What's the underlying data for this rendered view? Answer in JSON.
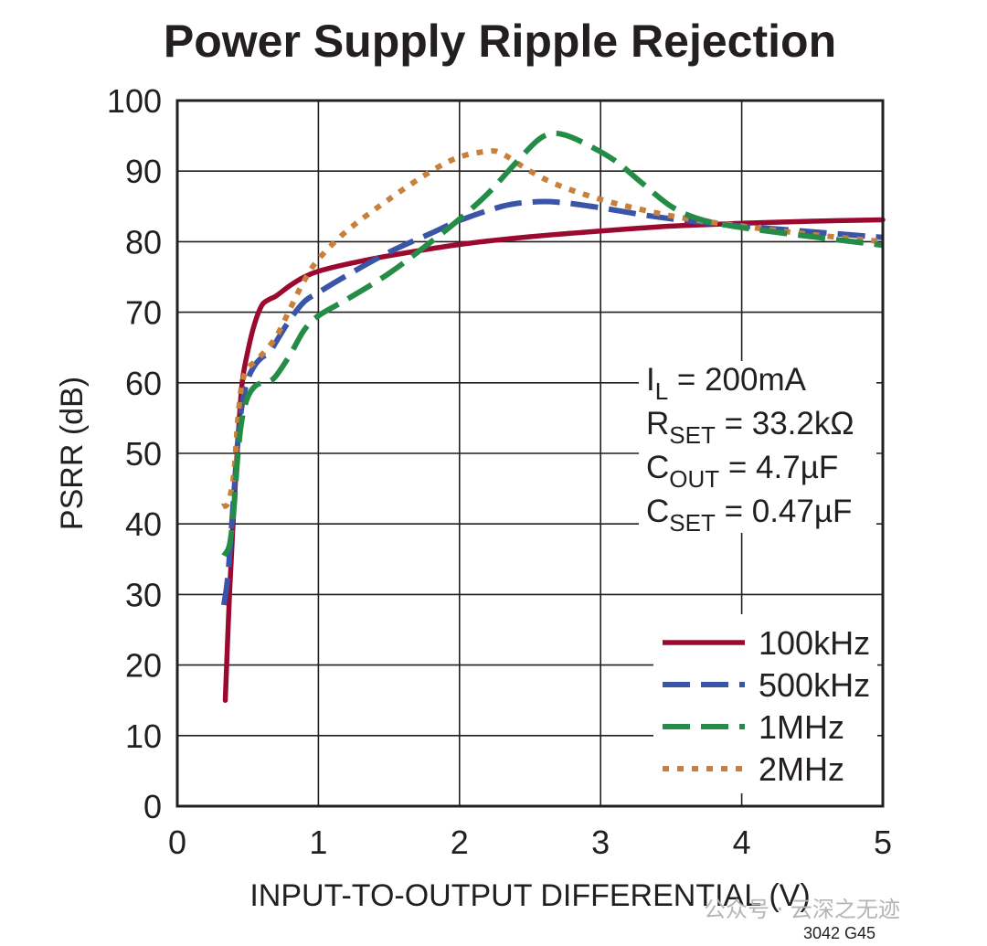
{
  "chart_data": {
    "type": "line",
    "title": "Power Supply Ripple Rejection",
    "xlabel": "INPUT-TO-OUTPUT DIFFERENTIAL (V)",
    "ylabel": "PSRR (dB)",
    "xlim": [
      0,
      5
    ],
    "ylim": [
      0,
      100
    ],
    "xticks": [
      "0",
      "1",
      "2",
      "3",
      "4",
      "5"
    ],
    "yticks": [
      "0",
      "10",
      "20",
      "30",
      "40",
      "50",
      "60",
      "70",
      "80",
      "90",
      "100"
    ],
    "grid": true,
    "conditions": [
      {
        "main": "I",
        "sub": "L",
        "rest": " = 200mA"
      },
      {
        "main": "R",
        "sub": "SET",
        "rest": " = 33.2kΩ"
      },
      {
        "main": "C",
        "sub": "OUT",
        "rest": " = 4.7µF"
      },
      {
        "main": "C",
        "sub": "SET",
        "rest": " = 0.47µF"
      }
    ],
    "legend_position": "bottom-right",
    "series": [
      {
        "name": "100kHz",
        "color": "#9b0a2e",
        "style": "solid",
        "points": [
          [
            0.34,
            15
          ],
          [
            0.37,
            30
          ],
          [
            0.4,
            42
          ],
          [
            0.43,
            52
          ],
          [
            0.46,
            60
          ],
          [
            0.5,
            64.5
          ],
          [
            0.55,
            68.5
          ],
          [
            0.6,
            71
          ],
          [
            0.65,
            71.8
          ],
          [
            0.7,
            72.3
          ],
          [
            0.8,
            73.8
          ],
          [
            0.9,
            75
          ],
          [
            1.0,
            75.8
          ],
          [
            1.2,
            76.8
          ],
          [
            1.5,
            78
          ],
          [
            2.0,
            79.6
          ],
          [
            2.5,
            80.7
          ],
          [
            3.0,
            81.5
          ],
          [
            3.5,
            82.2
          ],
          [
            4.0,
            82.6
          ],
          [
            4.5,
            82.9
          ],
          [
            5.0,
            83.1
          ]
        ]
      },
      {
        "name": "500kHz",
        "color": "#3a55a8",
        "style": "dash",
        "points": [
          [
            0.33,
            28.5
          ],
          [
            0.36,
            33
          ],
          [
            0.4,
            44
          ],
          [
            0.43,
            52
          ],
          [
            0.46,
            57
          ],
          [
            0.5,
            60.5
          ],
          [
            0.55,
            62.5
          ],
          [
            0.6,
            63.6
          ],
          [
            0.65,
            64.2
          ],
          [
            0.7,
            65.8
          ],
          [
            0.8,
            69
          ],
          [
            0.9,
            71.5
          ],
          [
            1.0,
            72.8
          ],
          [
            1.2,
            75.2
          ],
          [
            1.5,
            78.5
          ],
          [
            1.8,
            81.2
          ],
          [
            2.0,
            83
          ],
          [
            2.3,
            85
          ],
          [
            2.5,
            85.6
          ],
          [
            2.7,
            85.6
          ],
          [
            3.0,
            84.8
          ],
          [
            3.3,
            83.8
          ],
          [
            3.6,
            83
          ],
          [
            4.0,
            82.2
          ],
          [
            4.5,
            81.4
          ],
          [
            5.0,
            80.6
          ]
        ]
      },
      {
        "name": "1MHz",
        "color": "#258c48",
        "style": "dash",
        "points": [
          [
            0.33,
            35.5
          ],
          [
            0.37,
            37
          ],
          [
            0.4,
            42
          ],
          [
            0.43,
            50
          ],
          [
            0.46,
            55
          ],
          [
            0.5,
            58
          ],
          [
            0.55,
            59.5
          ],
          [
            0.6,
            60
          ],
          [
            0.65,
            60.2
          ],
          [
            0.7,
            61
          ],
          [
            0.8,
            64
          ],
          [
            0.9,
            67.5
          ],
          [
            1.0,
            69.5
          ],
          [
            1.2,
            71.8
          ],
          [
            1.5,
            75.5
          ],
          [
            1.8,
            80
          ],
          [
            2.0,
            83.2
          ],
          [
            2.2,
            86.8
          ],
          [
            2.4,
            91.2
          ],
          [
            2.55,
            94.3
          ],
          [
            2.65,
            95.3
          ],
          [
            2.75,
            95.1
          ],
          [
            2.9,
            93.8
          ],
          [
            3.1,
            91.5
          ],
          [
            3.3,
            88.2
          ],
          [
            3.5,
            85
          ],
          [
            3.7,
            83.2
          ],
          [
            4.0,
            82
          ],
          [
            4.5,
            80.7
          ],
          [
            5.0,
            79.5
          ]
        ]
      },
      {
        "name": "2MHz",
        "color": "#c8803c",
        "style": "dot",
        "points": [
          [
            0.32,
            42.5
          ],
          [
            0.36,
            43
          ],
          [
            0.4,
            47
          ],
          [
            0.43,
            55
          ],
          [
            0.46,
            60
          ],
          [
            0.5,
            62
          ],
          [
            0.55,
            63
          ],
          [
            0.6,
            64
          ],
          [
            0.7,
            66.5
          ],
          [
            0.8,
            70.5
          ],
          [
            0.9,
            74.5
          ],
          [
            1.0,
            77.5
          ],
          [
            1.2,
            81.5
          ],
          [
            1.5,
            86
          ],
          [
            1.8,
            90
          ],
          [
            2.0,
            92
          ],
          [
            2.2,
            92.8
          ],
          [
            2.3,
            92.5
          ],
          [
            2.5,
            90
          ],
          [
            2.7,
            88
          ],
          [
            3.0,
            86
          ],
          [
            3.3,
            84.5
          ],
          [
            3.6,
            83.3
          ],
          [
            4.0,
            82.2
          ],
          [
            4.5,
            81
          ],
          [
            5.0,
            80
          ]
        ]
      }
    ]
  },
  "figure_code": "3042 G45",
  "watermark": "公众号 · 云深之无迹"
}
